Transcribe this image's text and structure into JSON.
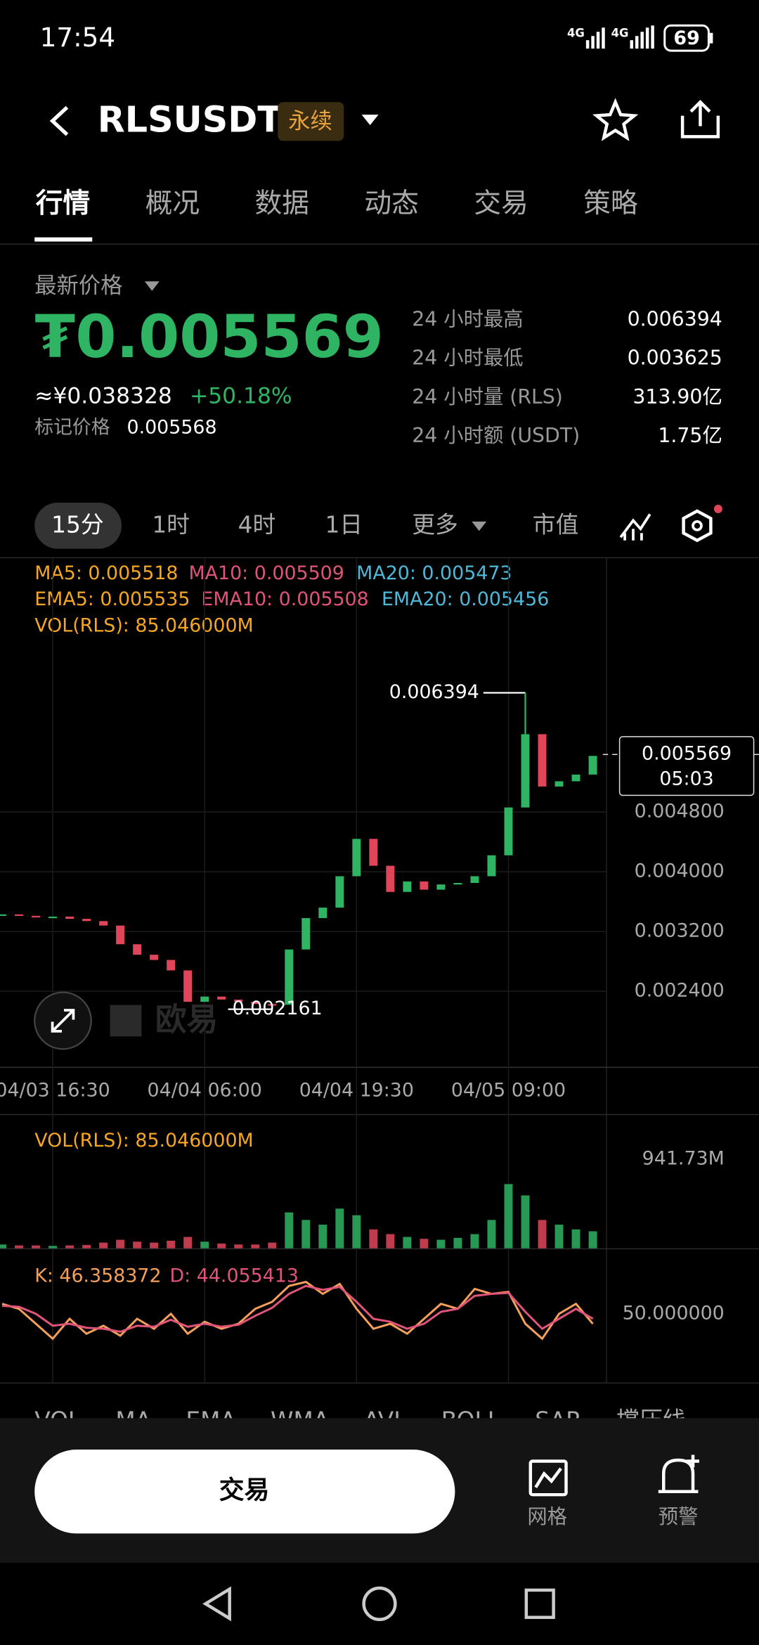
{
  "status_bar": {
    "time": "17:54",
    "network": [
      "4G",
      "4G"
    ],
    "battery": "69"
  },
  "header": {
    "symbol": "RLSUSDT",
    "badge": "永续"
  },
  "tabs": [
    "行情",
    "概况",
    "数据",
    "动态",
    "交易",
    "策略"
  ],
  "price": {
    "label": "最新价格",
    "last": "₮0.005569",
    "cny": "≈¥0.038328",
    "change": "+50.18%",
    "mark_label": "标记价格",
    "mark": "0.005568"
  },
  "stats": [
    {
      "label": "24 小时最高",
      "value": "0.006394"
    },
    {
      "label": "24 小时最低",
      "value": "0.003625"
    },
    {
      "label": "24 小时量 (RLS)",
      "value": "313.90亿"
    },
    {
      "label": "24 小时额 (USDT)",
      "value": "1.75亿"
    }
  ],
  "intervals": [
    "15分",
    "1时",
    "4时",
    "1日",
    "更多",
    "市值"
  ],
  "watermark": "欧易",
  "chart_data": [
    {
      "type": "candlestick",
      "indicators": [
        {
          "text": "MA5: 0.005518",
          "color": "#f5a623"
        },
        {
          "text": "MA10: 0.005509",
          "color": "#e0547a"
        },
        {
          "text": "MA20: 0.005473",
          "color": "#4fb8d8"
        },
        {
          "text": "EMA5: 0.005535",
          "color": "#f5a623"
        },
        {
          "text": "EMA10: 0.005508",
          "color": "#e0547a"
        },
        {
          "text": "EMA20: 0.005456",
          "color": "#4fb8d8"
        },
        {
          "text": "VOL(RLS): 85.046000M",
          "color": "#f5a623"
        }
      ],
      "categories": [
        null,
        null,
        null,
        "04/03 16:30",
        null,
        null,
        null,
        null,
        null,
        null,
        null,
        null,
        "04/04 06:00",
        null,
        null,
        null,
        null,
        null,
        null,
        null,
        null,
        "04/04 19:30",
        null,
        null,
        null,
        null,
        null,
        null,
        null,
        null,
        "04/05 09:00",
        null,
        null,
        null,
        null,
        null
      ],
      "values": [
        0.00343,
        0.00341,
        0.0034,
        0.0034,
        0.00337,
        0.00334,
        0.00328,
        0.00303,
        0.00289,
        0.00282,
        0.00268,
        0.00226,
        0.00233,
        0.00229,
        0.00226,
        0.00223,
        0.00222,
        0.00296,
        0.00338,
        0.00352,
        0.00394,
        0.00444,
        0.00408,
        0.00373,
        0.00387,
        0.00376,
        0.00383,
        0.00385,
        0.00394,
        0.00422,
        0.00486,
        0.00584,
        0.00514,
        0.00521,
        0.0053,
        0.00555
      ],
      "up_color": "#2fb464",
      "down_color": "#e0455a",
      "ylim": [
        0.00139,
        0.0071
      ],
      "yticks": [
        {
          "value": 0.0024,
          "label": "0.002400"
        },
        {
          "value": 0.0032,
          "label": "0.003200"
        },
        {
          "value": 0.004,
          "label": "0.004000"
        },
        {
          "value": 0.0048,
          "label": "0.004800"
        }
      ],
      "high": {
        "value": 0.006394,
        "label": "0.006394"
      },
      "low": {
        "value": 0.002161,
        "label": "0.002161"
      },
      "last": {
        "value": 0.005569,
        "label": "0.005569"
      },
      "countdown": "05:03"
    },
    {
      "type": "bar",
      "title": "VOL(RLS): 85.046000M",
      "values": [
        40,
        30,
        30,
        25,
        30,
        35,
        60,
        90,
        70,
        60,
        80,
        120,
        70,
        50,
        40,
        40,
        60,
        380,
        300,
        250,
        420,
        350,
        200,
        150,
        120,
        100,
        90,
        110,
        150,
        300,
        680,
        560,
        300,
        250,
        200,
        180
      ],
      "ylim": [
        0,
        1000
      ],
      "yticks": [
        {
          "value": 941.73,
          "label": "941.73M"
        }
      ]
    },
    {
      "type": "line",
      "series": [
        {
          "name": "K: 46.358372",
          "color": "#f5a05a",
          "values": [
            60,
            55,
            40,
            25,
            45,
            30,
            38,
            28,
            45,
            35,
            50,
            30,
            42,
            35,
            40,
            55,
            62,
            78,
            82,
            70,
            80,
            55,
            35,
            40,
            30,
            45,
            60,
            55,
            75,
            70,
            72,
            40,
            25,
            50,
            60,
            40
          ]
        },
        {
          "name": "D: 44.055413",
          "color": "#e0547a",
          "values": [
            58,
            57,
            50,
            38,
            40,
            36,
            35,
            32,
            38,
            37,
            44,
            37,
            40,
            37,
            39,
            48,
            56,
            70,
            78,
            74,
            77,
            62,
            45,
            42,
            35,
            40,
            52,
            55,
            68,
            70,
            71,
            52,
            35,
            45,
            55,
            45
          ]
        }
      ],
      "ylim": [
        0,
        100
      ],
      "yticks": [
        {
          "value": 50,
          "label": "50.000000"
        }
      ]
    }
  ],
  "indicator_tabs": [
    "VOL",
    "MA",
    "EMA",
    "WMA",
    "AVL",
    "BOLL",
    "SAR",
    "撑压线"
  ],
  "bottom": {
    "trade": "交易",
    "grid": "网格",
    "alert": "预警"
  }
}
